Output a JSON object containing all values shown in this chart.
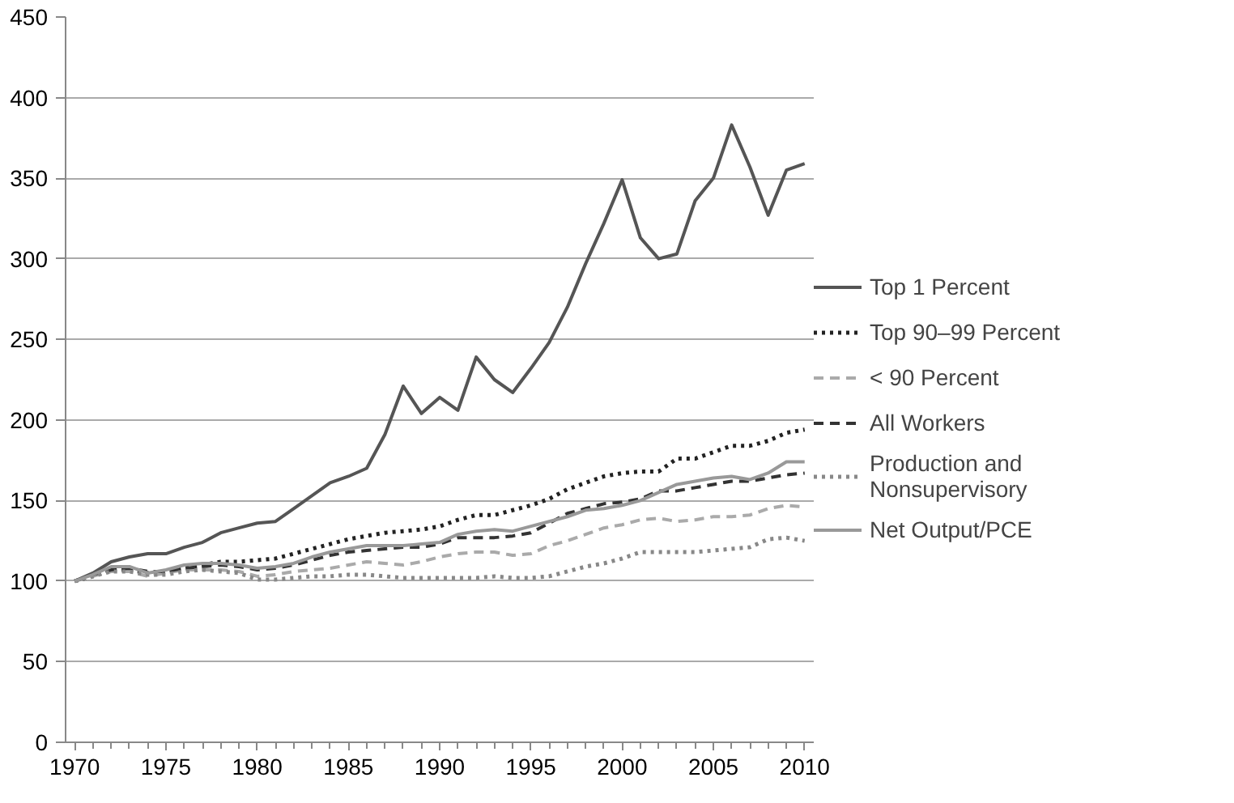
{
  "chart_data": {
    "type": "line",
    "x": [
      1970,
      1971,
      1972,
      1973,
      1974,
      1975,
      1976,
      1977,
      1978,
      1979,
      1980,
      1981,
      1982,
      1983,
      1984,
      1985,
      1986,
      1987,
      1988,
      1989,
      1990,
      1991,
      1992,
      1993,
      1994,
      1995,
      1996,
      1997,
      1998,
      1999,
      2000,
      2001,
      2002,
      2003,
      2004,
      2005,
      2006,
      2007,
      2008,
      2009,
      2010
    ],
    "xlim": [
      1969.5,
      2010.5
    ],
    "xticks": [
      1970,
      1975,
      1980,
      1985,
      1990,
      1995,
      2000,
      2005,
      2010
    ],
    "ylim": [
      0,
      450
    ],
    "yticks": [
      0,
      50,
      100,
      150,
      200,
      250,
      300,
      350,
      400,
      450
    ],
    "grid": "y",
    "legend": "right",
    "series": [
      {
        "name": "Top 1 Percent",
        "color": "#555555",
        "line_style": "solid",
        "values": [
          100,
          105,
          112,
          115,
          117,
          117,
          121,
          124,
          130,
          133,
          136,
          137,
          145,
          153,
          161,
          165,
          170,
          191,
          221,
          204,
          214,
          206,
          239,
          225,
          217,
          232,
          248,
          270,
          297,
          322,
          349,
          313,
          300,
          303,
          336,
          350,
          383,
          357,
          327,
          355,
          359
        ]
      },
      {
        "name": "Top 90–99 Percent",
        "color": "#222222",
        "line_style": "dotted",
        "values": [
          100,
          103,
          107,
          107,
          105,
          106,
          108,
          110,
          112,
          112,
          113,
          114,
          117,
          120,
          123,
          126,
          128,
          130,
          131,
          132,
          134,
          138,
          141,
          141,
          144,
          147,
          151,
          157,
          161,
          165,
          167,
          168,
          168,
          176,
          176,
          180,
          184,
          184,
          187,
          192,
          194
        ]
      },
      {
        "name": "< 90 Percent",
        "color": "#aaaaaa",
        "line_style": "dashed",
        "values": [
          100,
          103,
          106,
          106,
          103,
          105,
          107,
          107,
          107,
          106,
          103,
          104,
          106,
          107,
          108,
          110,
          112,
          111,
          110,
          112,
          115,
          117,
          118,
          118,
          116,
          117,
          122,
          125,
          129,
          133,
          135,
          138,
          139,
          137,
          138,
          140,
          140,
          141,
          145,
          147,
          146
        ]
      },
      {
        "name": "All Workers",
        "color": "#333333",
        "line_style": "dashed",
        "values": [
          100,
          104,
          107,
          108,
          106,
          106,
          108,
          109,
          110,
          109,
          107,
          108,
          110,
          113,
          116,
          118,
          119,
          120,
          121,
          121,
          123,
          127,
          127,
          127,
          128,
          130,
          136,
          142,
          145,
          148,
          149,
          151,
          156,
          156,
          158,
          160,
          162,
          162,
          164,
          166,
          167
        ]
      },
      {
        "name": "Production and Nonsupervisory",
        "color": "#888888",
        "line_style": "dotted",
        "values": [
          100,
          103,
          106,
          106,
          104,
          104,
          106,
          107,
          106,
          105,
          101,
          101,
          102,
          103,
          103,
          104,
          104,
          103,
          102,
          102,
          102,
          102,
          102,
          103,
          102,
          102,
          103,
          106,
          109,
          111,
          114,
          118,
          118,
          118,
          118,
          119,
          120,
          121,
          126,
          127,
          125
        ]
      },
      {
        "name": "Net Output/PCE",
        "color": "#999999",
        "line_style": "solid",
        "values": [
          100,
          104,
          109,
          109,
          105,
          107,
          110,
          111,
          111,
          110,
          108,
          109,
          111,
          115,
          118,
          120,
          122,
          122,
          122,
          123,
          124,
          129,
          131,
          132,
          131,
          134,
          137,
          140,
          144,
          145,
          147,
          150,
          155,
          160,
          162,
          164,
          165,
          163,
          167,
          174,
          174
        ]
      }
    ]
  }
}
